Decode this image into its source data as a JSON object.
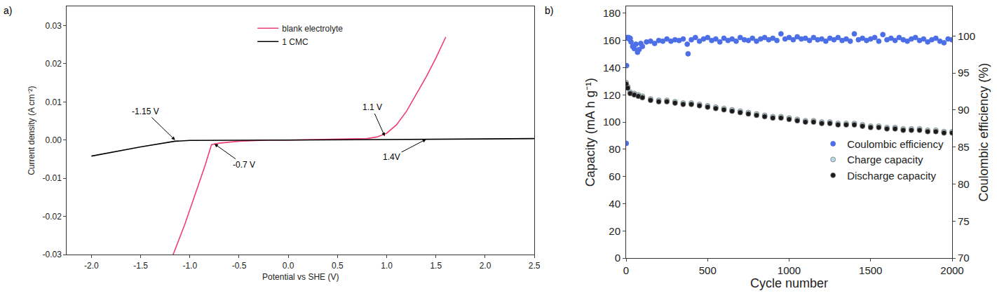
{
  "chart_data": [
    {
      "type": "line",
      "panel": "a)",
      "x_label": "Potential vs SHE (V)",
      "y_label": "Current density (A cm⁻²)",
      "xlim": [
        -2.25,
        2.5
      ],
      "xticks": [
        {
          "value": -2.0,
          "label": "-2.0"
        },
        -1.5,
        {
          "value": -1.0,
          "label": "-1.0"
        },
        -0.5,
        {
          "value": 0,
          "label": "0.0"
        },
        0.5,
        {
          "value": 1.0,
          "label": "1.0"
        },
        1.5,
        {
          "value": 2.0,
          "label": "2.0"
        },
        2.5
      ],
      "ylim": [
        -0.03,
        0.035
      ],
      "yticks": [
        -0.03,
        -0.02,
        -0.01,
        {
          "value": 0,
          "label": "0.00"
        },
        0.01,
        0.02,
        0.03
      ],
      "grid": false,
      "legend": "upper center",
      "line_style": "solid",
      "series": [
        {
          "name": "blank electrolyte",
          "color": "#ef3e72",
          "x": [
            -1.17,
            -1.05,
            -0.95,
            -0.85,
            -0.78,
            -0.7,
            -0.5,
            -0.2,
            0,
            0.5,
            0.8,
            0.9,
            1.0,
            1.1,
            1.2,
            1.3,
            1.4,
            1.5,
            1.6
          ],
          "values": [
            -0.03,
            -0.022,
            -0.0145,
            -0.007,
            -0.0012,
            -0.0008,
            -0.0003,
            0,
            0,
            0.0002,
            0.0004,
            0.0008,
            0.0018,
            0.004,
            0.0075,
            0.012,
            0.0165,
            0.0215,
            0.027
          ]
        },
        {
          "name": "1 CMC",
          "color": "#000000",
          "x": [
            -2.0,
            -1.5,
            -1.15,
            -1.0,
            0,
            1.0,
            1.4,
            2.0,
            2.5
          ],
          "values": [
            -0.0042,
            -0.0018,
            -0.0003,
            -0.0001,
            0,
            0.0001,
            0.0002,
            0.0003,
            0.0004
          ]
        }
      ],
      "annotations": [
        {
          "text": "-1.15 V",
          "x": -1.15,
          "y": 0,
          "text_x": -1.45,
          "text_y": 0.0075
        },
        {
          "text": "-0.7 V",
          "x": -0.75,
          "y": -0.001,
          "text_x": -0.45,
          "text_y": -0.0065
        },
        {
          "text": "1.1 V",
          "x": 0.98,
          "y": 0.001,
          "text_x": 0.85,
          "text_y": 0.0085
        },
        {
          "text": "1.4V",
          "x": 1.4,
          "y": 0.0002,
          "text_x": 1.05,
          "text_y": -0.0045
        }
      ]
    },
    {
      "type": "scatter",
      "panel": "b)",
      "x_label": "Cycle number",
      "y_label": "Capacity (mA h g⁻¹)",
      "y2_label": "Coulombic efficiency (%)",
      "xlim": [
        0,
        2000
      ],
      "xticks": [
        0,
        500,
        1000,
        1500,
        2000
      ],
      "ylim": [
        0,
        185
      ],
      "yticks": [
        0,
        20,
        40,
        60,
        80,
        100,
        120,
        140,
        160,
        180
      ],
      "y2lim": [
        70,
        104
      ],
      "y2ticks": [
        70,
        75,
        80,
        85,
        90,
        95,
        100
      ],
      "grid": false,
      "legend": "center",
      "marker": "circle",
      "series": [
        {
          "name": "Coulombic efficiency",
          "color": "#4c6ee6",
          "axis": "y2",
          "x": [
            1,
            3,
            6,
            10,
            15,
            20,
            25,
            30,
            40,
            50,
            60,
            70,
            80,
            90,
            100,
            125,
            150,
            175,
            200,
            225,
            250,
            275,
            300,
            325,
            350,
            375,
            380,
            400,
            425,
            450,
            475,
            500,
            525,
            550,
            575,
            600,
            625,
            650,
            675,
            700,
            725,
            750,
            775,
            800,
            825,
            850,
            875,
            900,
            925,
            950,
            975,
            1000,
            1025,
            1050,
            1075,
            1100,
            1125,
            1150,
            1175,
            1200,
            1225,
            1250,
            1275,
            1300,
            1325,
            1350,
            1375,
            1400,
            1425,
            1450,
            1475,
            1500,
            1525,
            1550,
            1575,
            1600,
            1625,
            1650,
            1675,
            1700,
            1725,
            1750,
            1775,
            1800,
            1825,
            1850,
            1875,
            1900,
            1925,
            1950,
            1975,
            2000
          ],
          "values": [
            85.5,
            96,
            99.8,
            99.7,
            99.8,
            99.6,
            99.7,
            99.2,
            98.6,
            98.3,
            98.9,
            97.8,
            98.2,
            99.0,
            98.6,
            99.2,
            99.3,
            99.0,
            99.4,
            99.3,
            99.6,
            99.3,
            99.5,
            99.4,
            99.6,
            98.9,
            97.6,
            99.5,
            99.8,
            99.3,
            99.6,
            99.8,
            99.4,
            99.6,
            99.2,
            99.7,
            99.4,
            99.6,
            99.3,
            99.8,
            99.5,
            99.4,
            99.7,
            99.3,
            99.6,
            99.8,
            99.5,
            99.7,
            99.4,
            100.3,
            99.6,
            99.8,
            99.5,
            99.9,
            99.6,
            99.7,
            99.4,
            99.8,
            99.5,
            99.6,
            99.3,
            99.7,
            99.5,
            99.8,
            99.4,
            99.6,
            99.3,
            100.3,
            99.5,
            99.7,
            99.4,
            99.6,
            99.8,
            99.3,
            100.2,
            99.5,
            99.7,
            99.4,
            99.8,
            99.5,
            99.3,
            99.6,
            99.8,
            99.4,
            99.6,
            99.2,
            99.5,
            99.7,
            99.3,
            99.1,
            99.6,
            99.5
          ]
        },
        {
          "name": "Charge capacity",
          "color": "#b9dbe6",
          "x": [
            0,
            10,
            25,
            50,
            75,
            100,
            150,
            200,
            250,
            300,
            350,
            400,
            450,
            500,
            550,
            600,
            650,
            700,
            750,
            800,
            850,
            900,
            950,
            1000,
            1050,
            1100,
            1150,
            1200,
            1250,
            1300,
            1350,
            1400,
            1450,
            1500,
            1550,
            1600,
            1650,
            1700,
            1750,
            1800,
            1850,
            1900,
            1950,
            2000
          ],
          "values": [
            129,
            126,
            122,
            121,
            120,
            119,
            117,
            116,
            116,
            115,
            114,
            114,
            113,
            112,
            111,
            110,
            109,
            108,
            107,
            106,
            105,
            104,
            104,
            103,
            102,
            101,
            101,
            100,
            100,
            99,
            99,
            99,
            98,
            97,
            97,
            96,
            96,
            95,
            95,
            95,
            94,
            94,
            93,
            93
          ]
        },
        {
          "name": "Discharge capacity",
          "color": "#1a1a1a",
          "x": [
            0,
            10,
            25,
            50,
            75,
            100,
            150,
            200,
            250,
            300,
            350,
            400,
            450,
            500,
            550,
            600,
            650,
            700,
            750,
            800,
            850,
            900,
            950,
            1000,
            1050,
            1100,
            1150,
            1200,
            1250,
            1300,
            1350,
            1400,
            1450,
            1500,
            1550,
            1600,
            1650,
            1700,
            1750,
            1800,
            1850,
            1900,
            1950,
            2000
          ],
          "values": [
            128,
            125,
            121,
            120,
            119,
            118,
            116,
            115,
            115,
            114,
            113,
            113,
            112,
            111,
            110,
            109,
            108,
            107,
            106,
            105,
            104,
            103,
            103,
            102,
            101,
            100,
            100,
            99,
            99,
            98,
            98,
            98,
            97,
            96,
            96,
            95,
            95,
            94,
            94,
            94,
            93,
            93,
            92,
            92
          ]
        }
      ]
    }
  ]
}
